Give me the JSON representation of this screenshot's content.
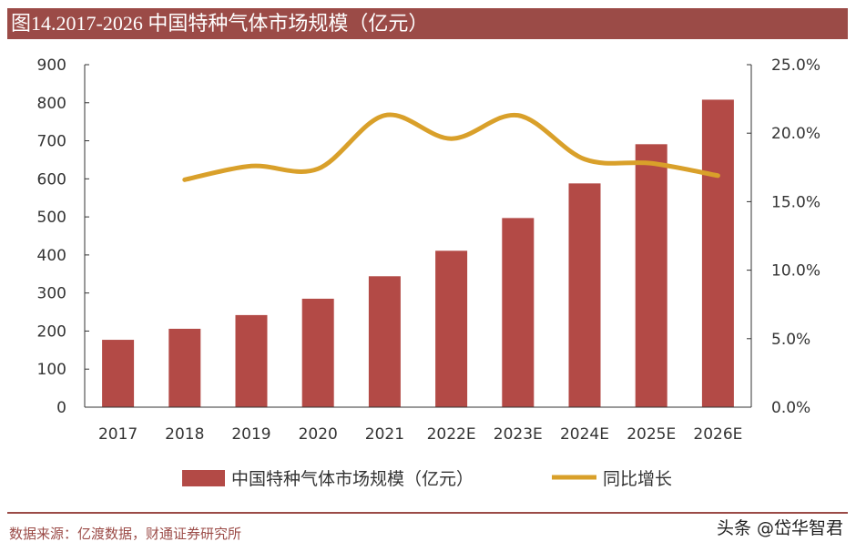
{
  "title": "图14.2017-2026 中国特种气体市场规模（亿元）",
  "source": "数据来源：亿渡数据，财通证券研究所",
  "watermark": "头条 @岱华智君",
  "chart_data": {
    "type": "bar+line",
    "categories": [
      "2017",
      "2018",
      "2019",
      "2020",
      "2021",
      "2022E",
      "2023E",
      "2024E",
      "2025E",
      "2026E"
    ],
    "series": [
      {
        "name": "中国特种气体市场规模（亿元）",
        "type": "bar",
        "axis": "left",
        "color": "#b34a46",
        "values": [
          177,
          206,
          242,
          285,
          344,
          411,
          497,
          588,
          691,
          808
        ]
      },
      {
        "name": "同比增长",
        "type": "line",
        "axis": "right",
        "color": "#d9a02a",
        "smooth": true,
        "values": [
          null,
          16.6,
          17.6,
          17.4,
          21.3,
          19.6,
          21.3,
          18.1,
          17.8,
          16.9
        ]
      }
    ],
    "y_left": {
      "range": [
        0,
        900
      ],
      "ticks": [
        "0",
        "100",
        "200",
        "300",
        "400",
        "500",
        "600",
        "700",
        "800",
        "900"
      ]
    },
    "y_right": {
      "range": [
        0,
        25
      ],
      "unit": "%",
      "ticks": [
        "0.0%",
        "5.0%",
        "10.0%",
        "15.0%",
        "20.0%",
        "25.0%"
      ]
    },
    "grid": false,
    "legend": "bottom"
  }
}
